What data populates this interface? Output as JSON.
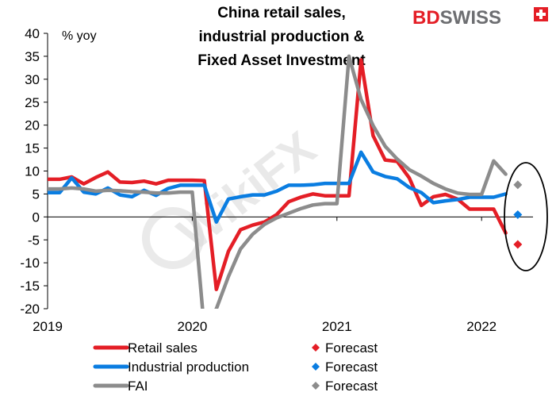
{
  "brand": {
    "part1": "BD",
    "part2": "SWISS",
    "color1": "#e41e26",
    "color2": "#6d6e71"
  },
  "watermark": "WikiFX",
  "chart_data": {
    "type": "line",
    "title_lines": [
      "China retail sales,",
      "industrial production &",
      "Fixed Asset Investment"
    ],
    "ylabel": "% yoy",
    "xlabel": "",
    "ylim": [
      -20,
      40
    ],
    "yticks": [
      -20,
      -15,
      -10,
      -5,
      0,
      5,
      10,
      15,
      20,
      25,
      30,
      35,
      40
    ],
    "xticks": [
      {
        "label": "2019",
        "x": "2019-01"
      },
      {
        "label": "2020",
        "x": "2020-01"
      },
      {
        "label": "2021",
        "x": "2021-01"
      },
      {
        "label": "2022",
        "x": "2022-01"
      }
    ],
    "grid": false,
    "legend_position": "bottom",
    "series": [
      {
        "name": "Retail sales",
        "color": "#e41e26",
        "points": [
          [
            "2019-01",
            8.2
          ],
          [
            "2019-02",
            8.2
          ],
          [
            "2019-03",
            8.7
          ],
          [
            "2019-04",
            7.2
          ],
          [
            "2019-05",
            8.6
          ],
          [
            "2019-06",
            9.8
          ],
          [
            "2019-07",
            7.6
          ],
          [
            "2019-08",
            7.5
          ],
          [
            "2019-09",
            7.8
          ],
          [
            "2019-10",
            7.2
          ],
          [
            "2019-11",
            8.0
          ],
          [
            "2019-12",
            8.0
          ],
          [
            "2020-01",
            8.0
          ],
          [
            "2020-02",
            7.9
          ],
          [
            "2020-03",
            -15.8
          ],
          [
            "2020-04",
            -7.5
          ],
          [
            "2020-05",
            -2.8
          ],
          [
            "2020-06",
            -1.8
          ],
          [
            "2020-07",
            -1.1
          ],
          [
            "2020-08",
            0.5
          ],
          [
            "2020-09",
            3.3
          ],
          [
            "2020-10",
            4.3
          ],
          [
            "2020-11",
            5.0
          ],
          [
            "2020-12",
            4.6
          ],
          [
            "2021-01",
            4.6
          ],
          [
            "2021-02",
            4.6
          ],
          [
            "2021-03",
            34.2
          ],
          [
            "2021-04",
            17.7
          ],
          [
            "2021-05",
            12.4
          ],
          [
            "2021-06",
            12.1
          ],
          [
            "2021-07",
            8.5
          ],
          [
            "2021-08",
            2.5
          ],
          [
            "2021-09",
            4.4
          ],
          [
            "2021-10",
            4.9
          ],
          [
            "2021-11",
            3.9
          ],
          [
            "2021-12",
            1.7
          ],
          [
            "2022-01",
            1.7
          ],
          [
            "2022-02",
            1.7
          ],
          [
            "2022-03",
            -3.5
          ]
        ],
        "forecast": {
          "x": "2022-04",
          "y": -6.0,
          "label": "Forecast"
        }
      },
      {
        "name": "Industrial production",
        "color": "#0a7de1",
        "points": [
          [
            "2019-01",
            5.3
          ],
          [
            "2019-02",
            5.3
          ],
          [
            "2019-03",
            8.5
          ],
          [
            "2019-04",
            5.4
          ],
          [
            "2019-05",
            5.0
          ],
          [
            "2019-06",
            6.3
          ],
          [
            "2019-07",
            4.8
          ],
          [
            "2019-08",
            4.4
          ],
          [
            "2019-09",
            5.8
          ],
          [
            "2019-10",
            4.7
          ],
          [
            "2019-11",
            6.2
          ],
          [
            "2019-12",
            6.9
          ],
          [
            "2020-01",
            6.9
          ],
          [
            "2020-02",
            6.9
          ],
          [
            "2020-03",
            -1.1
          ],
          [
            "2020-04",
            3.9
          ],
          [
            "2020-05",
            4.4
          ],
          [
            "2020-06",
            4.8
          ],
          [
            "2020-07",
            4.8
          ],
          [
            "2020-08",
            5.6
          ],
          [
            "2020-09",
            6.9
          ],
          [
            "2020-10",
            6.9
          ],
          [
            "2020-11",
            7.0
          ],
          [
            "2020-12",
            7.3
          ],
          [
            "2021-01",
            7.3
          ],
          [
            "2021-02",
            7.3
          ],
          [
            "2021-03",
            14.1
          ],
          [
            "2021-04",
            9.8
          ],
          [
            "2021-05",
            8.8
          ],
          [
            "2021-06",
            8.3
          ],
          [
            "2021-07",
            6.4
          ],
          [
            "2021-08",
            5.3
          ],
          [
            "2021-09",
            3.1
          ],
          [
            "2021-10",
            3.5
          ],
          [
            "2021-11",
            3.8
          ],
          [
            "2021-12",
            4.3
          ],
          [
            "2022-01",
            4.3
          ],
          [
            "2022-02",
            4.3
          ],
          [
            "2022-03",
            5.0
          ]
        ],
        "forecast": {
          "x": "2022-04",
          "y": 0.5,
          "label": "Forecast"
        }
      },
      {
        "name": "FAI",
        "color": "#8c8c8c",
        "points": [
          [
            "2019-01",
            6.1
          ],
          [
            "2019-02",
            6.1
          ],
          [
            "2019-03",
            6.3
          ],
          [
            "2019-04",
            6.1
          ],
          [
            "2019-05",
            5.6
          ],
          [
            "2019-06",
            5.8
          ],
          [
            "2019-07",
            5.7
          ],
          [
            "2019-08",
            5.5
          ],
          [
            "2019-09",
            5.4
          ],
          [
            "2019-10",
            5.2
          ],
          [
            "2019-11",
            5.2
          ],
          [
            "2019-12",
            5.4
          ],
          [
            "2020-01",
            5.4
          ],
          [
            "2020-02",
            -24.5
          ],
          [
            "2020-03",
            -20.0
          ],
          [
            "2020-04",
            -13.0
          ],
          [
            "2020-05",
            -7.0
          ],
          [
            "2020-06",
            -3.8
          ],
          [
            "2020-07",
            -1.6
          ],
          [
            "2020-08",
            -0.2
          ],
          [
            "2020-09",
            0.8
          ],
          [
            "2020-10",
            1.8
          ],
          [
            "2020-11",
            2.6
          ],
          [
            "2020-12",
            2.9
          ],
          [
            "2021-01",
            2.9
          ],
          [
            "2021-02",
            35.0
          ],
          [
            "2021-03",
            25.6
          ],
          [
            "2021-04",
            19.9
          ],
          [
            "2021-05",
            15.4
          ],
          [
            "2021-06",
            12.6
          ],
          [
            "2021-07",
            10.3
          ],
          [
            "2021-08",
            8.9
          ],
          [
            "2021-09",
            7.3
          ],
          [
            "2021-10",
            6.1
          ],
          [
            "2021-11",
            5.2
          ],
          [
            "2021-12",
            4.9
          ],
          [
            "2022-01",
            4.9
          ],
          [
            "2022-02",
            12.2
          ],
          [
            "2022-03",
            9.3
          ]
        ],
        "forecast": {
          "x": "2022-04",
          "y": 7.0,
          "label": "Forecast"
        }
      }
    ]
  }
}
